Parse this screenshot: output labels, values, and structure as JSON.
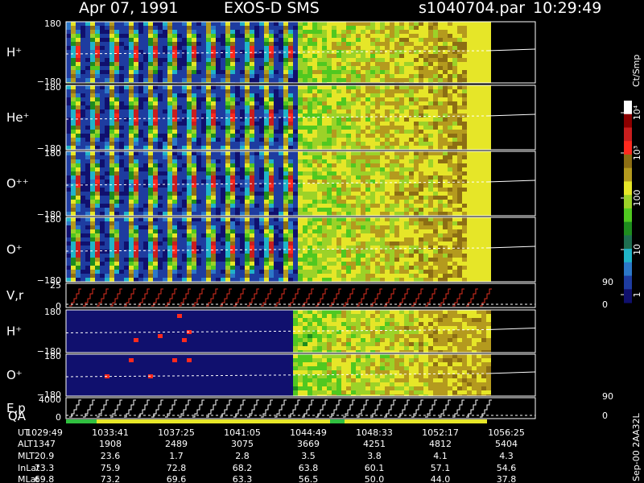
{
  "header": {
    "date": "Apr 07, 1991",
    "instrument": "EXOS-D SMS",
    "file": "s1040704.par",
    "time": "10:29:49"
  },
  "panels": [
    {
      "label": "H⁺",
      "top": "180",
      "bottom": "−180"
    },
    {
      "label": "He⁺",
      "top": "180",
      "bottom": "−180"
    },
    {
      "label": "O⁺⁺",
      "top": "180",
      "bottom": "−180"
    },
    {
      "label": "O⁺",
      "top": "180",
      "bottom": "−180"
    },
    {
      "label": "V,r",
      "top": "25",
      "bottom": "0",
      "right_top": "90",
      "right_bottom": "0"
    },
    {
      "label": "H⁺",
      "top": "180",
      "bottom": "−180"
    },
    {
      "label": "O⁺",
      "top": "180",
      "bottom": "−180"
    },
    {
      "label": "E,p",
      "top": "4000",
      "bottom": "0",
      "right_top": "90",
      "right_bottom": "0"
    }
  ],
  "qa_label": "QA",
  "colorbar": {
    "unit": "Ct/Smp",
    "ticks": [
      "10⁴",
      "10³",
      "100",
      "10",
      "1"
    ]
  },
  "footer": [
    {
      "label": "UT",
      "values": [
        "1029:49",
        "1033:41",
        "1037:25",
        "1041:05",
        "1044:49",
        "1048:33",
        "1052:17",
        "1056:25"
      ]
    },
    {
      "label": "ALT",
      "values": [
        "1347",
        "1908",
        "2489",
        "3075",
        "3669",
        "4251",
        "4812",
        "5404"
      ]
    },
    {
      "label": "MLT",
      "values": [
        "20.9",
        "23.6",
        "1.7",
        "2.8",
        "3.5",
        "3.8",
        "4.1",
        "4.3"
      ]
    },
    {
      "label": "InLat",
      "values": [
        "73.3",
        "75.9",
        "72.8",
        "68.2",
        "63.8",
        "60.1",
        "57.1",
        "54.6"
      ]
    },
    {
      "label": "MLat",
      "values": [
        "69.8",
        "73.2",
        "69.6",
        "63.3",
        "56.5",
        "50.0",
        "44.0",
        "37.8"
      ]
    }
  ],
  "side_note": "Sep-00 2AA32L"
}
